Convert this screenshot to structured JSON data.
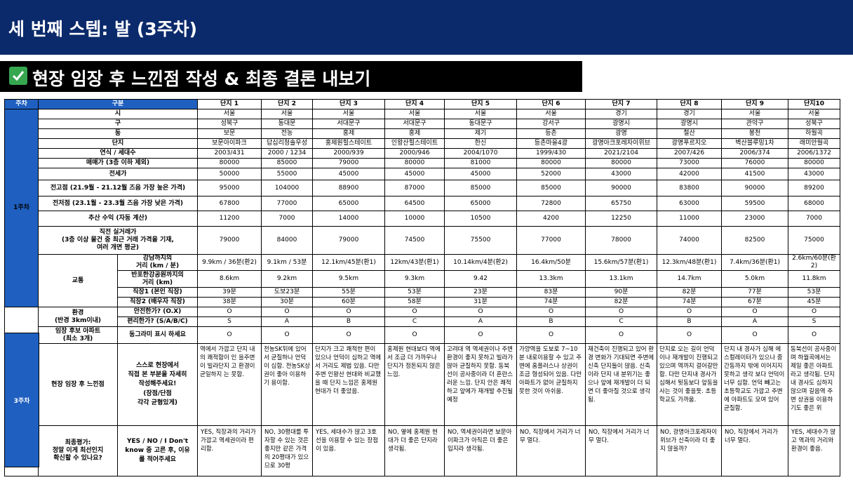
{
  "header": {
    "title": "세 번째 스텝: 발 (3주차)"
  },
  "subheader": {
    "icon": "check-mark-icon",
    "text": "현장 임장 후 느낀점 작성 & 최종 결론 내보기"
  },
  "table": {
    "col_week": "주차",
    "col_category": "구분",
    "complexes": [
      "단지 1",
      "단지 2",
      "단지 3",
      "단지 4",
      "단지 5",
      "단지 6",
      "단지 7",
      "단지 8",
      "단지 9",
      "단지10"
    ],
    "weeks": {
      "w1": "1주차",
      "w3": "3주차"
    },
    "basic_rows": [
      {
        "label": "시",
        "values": [
          "서울",
          "서울",
          "서울",
          "서울",
          "서울",
          "서울",
          "경기",
          "경기",
          "서울",
          "서울"
        ]
      },
      {
        "label": "구",
        "values": [
          "성북구",
          "동대문",
          "서대문구",
          "서대문구",
          "동대문구",
          "강서구",
          "광명시",
          "광명시",
          "관악구",
          "성북구"
        ]
      },
      {
        "label": "동",
        "values": [
          "보문",
          "전농",
          "홍제",
          "홍제",
          "제기",
          "등촌",
          "광명",
          "철산",
          "봉천",
          "하월곡"
        ]
      },
      {
        "label": "단지",
        "values": [
          "보문아이파크",
          "답십리청솔우성",
          "홍제원힐스테이트",
          "인왕산힐스테이트",
          "한신",
          "등촌마을4광",
          "광명아크포레자이위브",
          "광명푸르지오",
          "벽산블루밍1차",
          "래미안월곡"
        ]
      },
      {
        "label": "연식 / 세대수",
        "values": [
          "2003/431",
          "2000 / 1234",
          "2000/939",
          "2000/946",
          "2004/1070",
          "1999/430",
          "2021/2104",
          "2007/426",
          "2006/374",
          "2006/1372"
        ]
      },
      {
        "label": "매매가 (3층 이하 제외)",
        "values": [
          "80000",
          "85000",
          "79000",
          "80000",
          "81000",
          "80000",
          "80000",
          "73000",
          "76000",
          "80000"
        ]
      },
      {
        "label": "전세가",
        "values": [
          "50000",
          "55000",
          "45000",
          "45000",
          "45000",
          "52000",
          "43000",
          "42000",
          "41500",
          "43000"
        ]
      },
      {
        "label": "전고점 (21.9월 - 21.12월 즈음 가장 높은 가격)",
        "values": [
          "95000",
          "104000",
          "88900",
          "87000",
          "85000",
          "85000",
          "90000",
          "83800",
          "90000",
          "89200"
        ]
      },
      {
        "label": "전저점 (23.1월 - 23.3월 즈음 가장 낮은 가격)",
        "values": [
          "67800",
          "77000",
          "65000",
          "64500",
          "65000",
          "72800",
          "65750",
          "63000",
          "59500",
          "68000"
        ]
      },
      {
        "label": "추산 수익 (자동 계산)",
        "values": [
          "11200",
          "7000",
          "14000",
          "10000",
          "10500",
          "4200",
          "12250",
          "11000",
          "23000",
          "7000"
        ]
      },
      {
        "label_lines": [
          "직전 실거래가",
          "(3층 이상 물건 중 최근 거래 가격을 기재,",
          "여러 개면 평균)"
        ],
        "values": [
          "79000",
          "84000",
          "79000",
          "74500",
          "75500",
          "77000",
          "78000",
          "74000",
          "82500",
          "75000"
        ]
      }
    ],
    "traffic": {
      "label": "교통",
      "rows": [
        {
          "label_lines": [
            "강남까지의",
            "거리 (km / 분)"
          ],
          "values": [
            "9.9km / 36분(환2)",
            "9.1km / 53분",
            "12.1km/45분(환1)",
            "12km/43분(환1)",
            "10.14km/4분(환2)",
            "16.4km/50분",
            "15.6km/57분(환1)",
            "12.3km/48분(환1)",
            "7.4km/36분(환1)",
            "2.6km/60분(환2)"
          ]
        },
        {
          "label_lines": [
            "반포한강공원까지의",
            "거리 (km)"
          ],
          "values": [
            "8.6km",
            "9.2km",
            "9.5km",
            "9.3km",
            "9.42",
            "13.3km",
            "13.1km",
            "14.7km",
            "5.0km",
            "11.8km"
          ]
        },
        {
          "label": "직장1 (본인 직장)",
          "values": [
            "39분",
            "도보23분",
            "55분",
            "53분",
            "23분",
            "83분",
            "90분",
            "82분",
            "77분",
            "53분"
          ]
        },
        {
          "label": "직장2 (배우자 직장)",
          "values": [
            "38분",
            "30분",
            "60분",
            "58분",
            "31분",
            "74분",
            "82분",
            "74분",
            "67분",
            "45분"
          ]
        }
      ]
    },
    "environment": {
      "label_lines": [
        "환경",
        "(반경 3km이내)"
      ],
      "rows": [
        {
          "label": "안전한가? (O.X)",
          "values": [
            "O",
            "O",
            "O",
            "O",
            "O",
            "O",
            "O",
            "O",
            "O",
            "O"
          ]
        },
        {
          "label": "편리한가? (S/A/B/C)",
          "values": [
            "S",
            "A",
            "B",
            "C",
            "A",
            "B",
            "C",
            "B",
            "A",
            "S"
          ]
        }
      ]
    },
    "candidate": {
      "label_lines": [
        "임장 후보 아파트",
        "(최소 3개)"
      ],
      "guide": "동그라미 표시 하세요",
      "values": [
        "O",
        "O",
        "O",
        "O",
        "O",
        "O",
        "O",
        "O",
        "O",
        "O"
      ]
    },
    "impressions": {
      "label": "현장 임장 후 느낀점",
      "guide_lines": [
        "스스로 현장에서",
        "직접 본 부분을 자세히",
        "작성해주세요!",
        "(장점/단점",
        "각각 균형있게)"
      ],
      "values": [
        "역에서 가깝고 단지 내의 쾌적함이 인 을주변이 빌라단지 고 환경이 균일하지 는 못함.",
        "전농SK뒤에 있어서 균질하나 언덕이 심함. 전농SK상권이 좋아 이용하기 용이함.",
        "단지가 크고 쾌적한 편이 있으나 언덕이 심하고 역에서 거리도 제법 있음. 다만 주변 인왕산 현대와 비교했을 때 단지 느낌은 홍제원 현대가 더 좋았음.",
        "홍제원 현대보다 역에서 조금 더 가까우나 단지가 정돈되지 않은 느낌.",
        "고려대 역 역세권이나 주변 환경이 좋지 못하고 빌라가 많아 균질하지 못함. 동북선이 공사중이라 더 혼란스러운 느낌. 단지 안은 쾌적하고 앞에가 재개발 추진될 예정",
        "가양역을 도보로 7~10분 내로이용할 수 있고 주변에 홈플러스나 상권이 조금 형성되어 있음. 다만 아파트가 없어 균질하지 못한 것이 아쉬움.",
        "재건축이 진행되고 있어 환경 변화가 기대되면 주변에 신축 단지들이 많음. 신축이라 단지 내 분위기는 좋으나 앞에 재개발이 더 되면 더 좋아질 것으로 생각됨.",
        "단지로 오는 길이 언덕이나 재개발이 진행되고 있으며 역까지 걸어갈만 함. 다만 단지내 경사가 심해서 뒷동보다 앞동을 사는 것이 좋을듯. 초등학교도 가까움.",
        "단지 내 경사가 심해 에스컬레이터가 있으나 중간동까지 밖에 이어지지 못하고 생각 보다 언덕이 너무 심함. 언덕 빼고는 초등학교도 가깝고 주변에 아파트도 모여 있어 균질함.",
        "동북선이 공사중이며 하월곡에서는 제일 좋은 아파트라고 생각됨. 단지 내 경사도 심하지 않으며 길음역 주변 상권을 이용하기도 좋은 위"
      ]
    },
    "evaluation": {
      "label_lines": [
        "최종평가:",
        "정말 이게 최선인지",
        "확신할 수 있나요?"
      ],
      "guide_lines": [
        "YES / NO / I Don't",
        "know 중 고른 후, 이유",
        "를 적어주세요"
      ],
      "values": [
        "YES, 직장과의 거리가 가깝고 역세권이라 편리함.",
        "NO, 30평대를 투자할 수 있는 것은 좋지만 같은 가격의 20평대가 있으므로 30평",
        "YES, 세대수가 많고 3호선을 이용할 수 있는 장점이 있음.",
        "NO, 옆에 홍제원 현대가 더 좋은 단지라 생각됨.",
        "NO, 역세권이라면 보문아이파크가 아직은 더 좋은 입지라 생각됨.",
        "NO, 직장에서 거리가 너무 멀다.",
        "NO, 직장에서 거리가 너무 멀다.",
        "NO, 광명아크포레자이위브가 신축이라 더 좋지 않을까?",
        "NO, 직장에서 거리가 너무 멀다.",
        "YES, 세대수가 많고 역과의 거리와 환경이 좋음."
      ]
    }
  }
}
